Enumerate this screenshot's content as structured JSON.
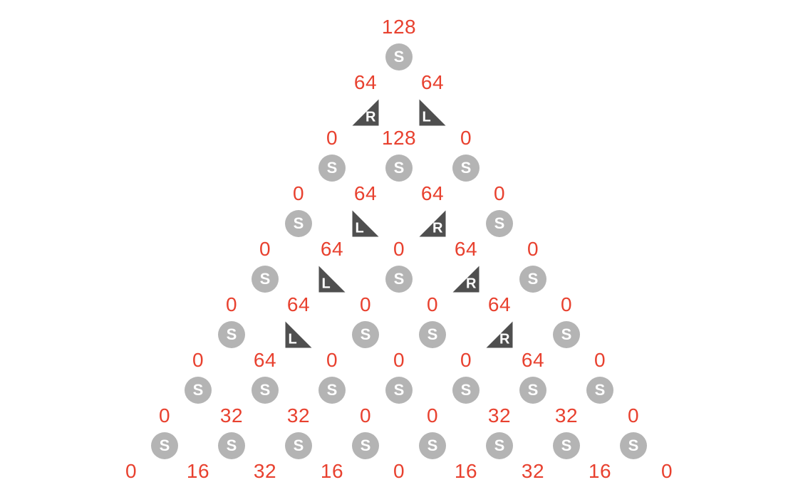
{
  "layout": {
    "centerX": 560,
    "topY": 38,
    "numberRowPitchY": 78,
    "nodeOffsetY": 42,
    "colPitchX": 47
  },
  "style": {
    "background": "#ffffff",
    "numberColor": "#e8412f",
    "numberFontSize": 28,
    "sNode": {
      "diameter": 38,
      "bg": "#b4b4b4",
      "fg": "#ffffff",
      "letter": "S",
      "letterSize": 22
    },
    "triNode": {
      "size": 37,
      "bg": "#4f4f4f",
      "fg": "#ffffff",
      "letterSize": 20
    }
  },
  "numberRows": [
    [
      "128"
    ],
    [
      "64",
      "64"
    ],
    [
      "0",
      "128",
      "0"
    ],
    [
      "0",
      "64",
      "64",
      "0"
    ],
    [
      "0",
      "64",
      "0",
      "64",
      "0"
    ],
    [
      "0",
      "64",
      "0",
      "0",
      "64",
      "0"
    ],
    [
      "0",
      "64",
      "0",
      "0",
      "0",
      "64",
      "0"
    ],
    [
      "0",
      "32",
      "32",
      "0",
      "0",
      "32",
      "32",
      "0"
    ],
    [
      "0",
      "16",
      "32",
      "16",
      "0",
      "16",
      "32",
      "16",
      "0"
    ]
  ],
  "nodeRows": [
    [
      {
        "t": "S"
      }
    ],
    [
      {
        "t": "R"
      },
      {
        "t": "L"
      }
    ],
    [
      {
        "t": "S"
      },
      {
        "t": "S"
      },
      {
        "t": "S"
      }
    ],
    [
      {
        "t": "S"
      },
      {
        "t": "L"
      },
      {
        "t": "R"
      },
      {
        "t": "S"
      }
    ],
    [
      {
        "t": "S"
      },
      {
        "t": "L"
      },
      {
        "t": "S"
      },
      {
        "t": "R"
      },
      {
        "t": "S"
      }
    ],
    [
      {
        "t": "S"
      },
      {
        "t": "L"
      },
      {
        "t": "S"
      },
      {
        "t": "S"
      },
      {
        "t": "R"
      },
      {
        "t": "S"
      }
    ],
    [
      {
        "t": "S"
      },
      {
        "t": "S"
      },
      {
        "t": "S"
      },
      {
        "t": "S"
      },
      {
        "t": "S"
      },
      {
        "t": "S"
      },
      {
        "t": "S"
      }
    ],
    [
      {
        "t": "S"
      },
      {
        "t": "S"
      },
      {
        "t": "S"
      },
      {
        "t": "S"
      },
      {
        "t": "S"
      },
      {
        "t": "S"
      },
      {
        "t": "S"
      },
      {
        "t": "S"
      }
    ]
  ]
}
